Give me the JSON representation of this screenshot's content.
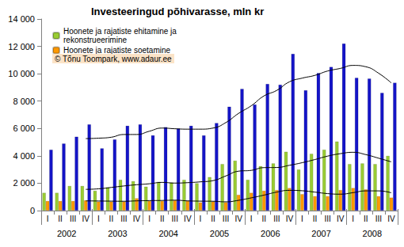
{
  "chart_data": {
    "type": "bar",
    "title": "Investeeringud põhivarasse, mln kr",
    "annotations": [
      "© Tõnu Toompark, www.adaur.ee"
    ],
    "categories": [
      "I",
      "II",
      "III",
      "IV",
      "I",
      "II",
      "III",
      "IV",
      "I",
      "II",
      "III",
      "IV",
      "I",
      "II",
      "III",
      "IV",
      "I",
      "II",
      "III",
      "IV",
      "I",
      "II",
      "III",
      "IV",
      "I",
      "II",
      "III",
      "IV"
    ],
    "groups": [
      "2002",
      "2003",
      "2004",
      "2005",
      "2006",
      "2007",
      "2008"
    ],
    "series": [
      {
        "name": "Hoonete ja rajatiste ehitamine ja rekonstrueerimine",
        "type": "bar",
        "color": "#99cc33",
        "values": [
          1300,
          1300,
          1800,
          1800,
          1450,
          1700,
          2250,
          2150,
          1750,
          2100,
          2050,
          2250,
          2000,
          2450,
          3400,
          3650,
          2250,
          3250,
          3450,
          4300,
          3000,
          4150,
          4450,
          5050,
          3400,
          3450,
          3400,
          4000
        ]
      },
      {
        "name": "Hoonete ja rajatiste soetamine",
        "type": "bar",
        "color": "#ff9900",
        "values": [
          700,
          700,
          700,
          750,
          650,
          650,
          650,
          900,
          700,
          700,
          750,
          700,
          600,
          650,
          600,
          1150,
          1300,
          1450,
          1500,
          1650,
          1200,
          1050,
          1050,
          1500,
          1650,
          1550,
          1050,
          950
        ]
      },
      {
        "type": "bar",
        "color": "#1414c8",
        "values": [
          4450,
          4900,
          5400,
          6300,
          4550,
          5200,
          6200,
          6300,
          5500,
          6100,
          6000,
          6200,
          5500,
          6400,
          7600,
          8900,
          7750,
          9250,
          9200,
          11450,
          8800,
          10050,
          10500,
          12200,
          9700,
          9650,
          8600,
          9350
        ]
      },
      {
        "type": "line",
        "color": "#000000",
        "line_style": "solid",
        "values": [
          null,
          null,
          null,
          5260,
          5290,
          5360,
          5560,
          5560,
          5800,
          6030,
          5980,
          5950,
          5950,
          6030,
          6430,
          7100,
          7660,
          8380,
          8780,
          9410,
          9680,
          9880,
          10200,
          10390,
          10610,
          10510,
          10040,
          9330
        ]
      },
      {
        "type": "line",
        "color": "#000000",
        "line_style": "solid",
        "values": [
          null,
          null,
          null,
          1550,
          1590,
          1690,
          1800,
          1890,
          1960,
          2060,
          2010,
          2040,
          2100,
          2190,
          2530,
          2880,
          2940,
          3140,
          3150,
          3310,
          3500,
          3730,
          3980,
          4160,
          4260,
          4090,
          3830,
          3560
        ]
      },
      {
        "type": "line",
        "color": "#000000",
        "line_style": "solid",
        "values": [
          null,
          null,
          null,
          710,
          700,
          690,
          680,
          710,
          730,
          740,
          760,
          710,
          690,
          680,
          640,
          750,
          930,
          1130,
          1350,
          1480,
          1450,
          1350,
          1240,
          1200,
          1310,
          1440,
          1440,
          1300
        ]
      }
    ],
    "ylim": [
      0,
      14000
    ],
    "yticks": [
      0,
      {
        "value": 2000,
        "label": "2 000"
      },
      {
        "value": 4000,
        "label": "4 000"
      },
      {
        "value": 6000,
        "label": "6 000"
      },
      {
        "value": 8000,
        "label": "8 000"
      },
      {
        "value": 10000,
        "label": "10 000"
      },
      {
        "value": 12000,
        "label": "12 000"
      },
      {
        "value": 14000,
        "label": "14 000"
      }
    ],
    "grid": false,
    "legend": "upper left"
  }
}
